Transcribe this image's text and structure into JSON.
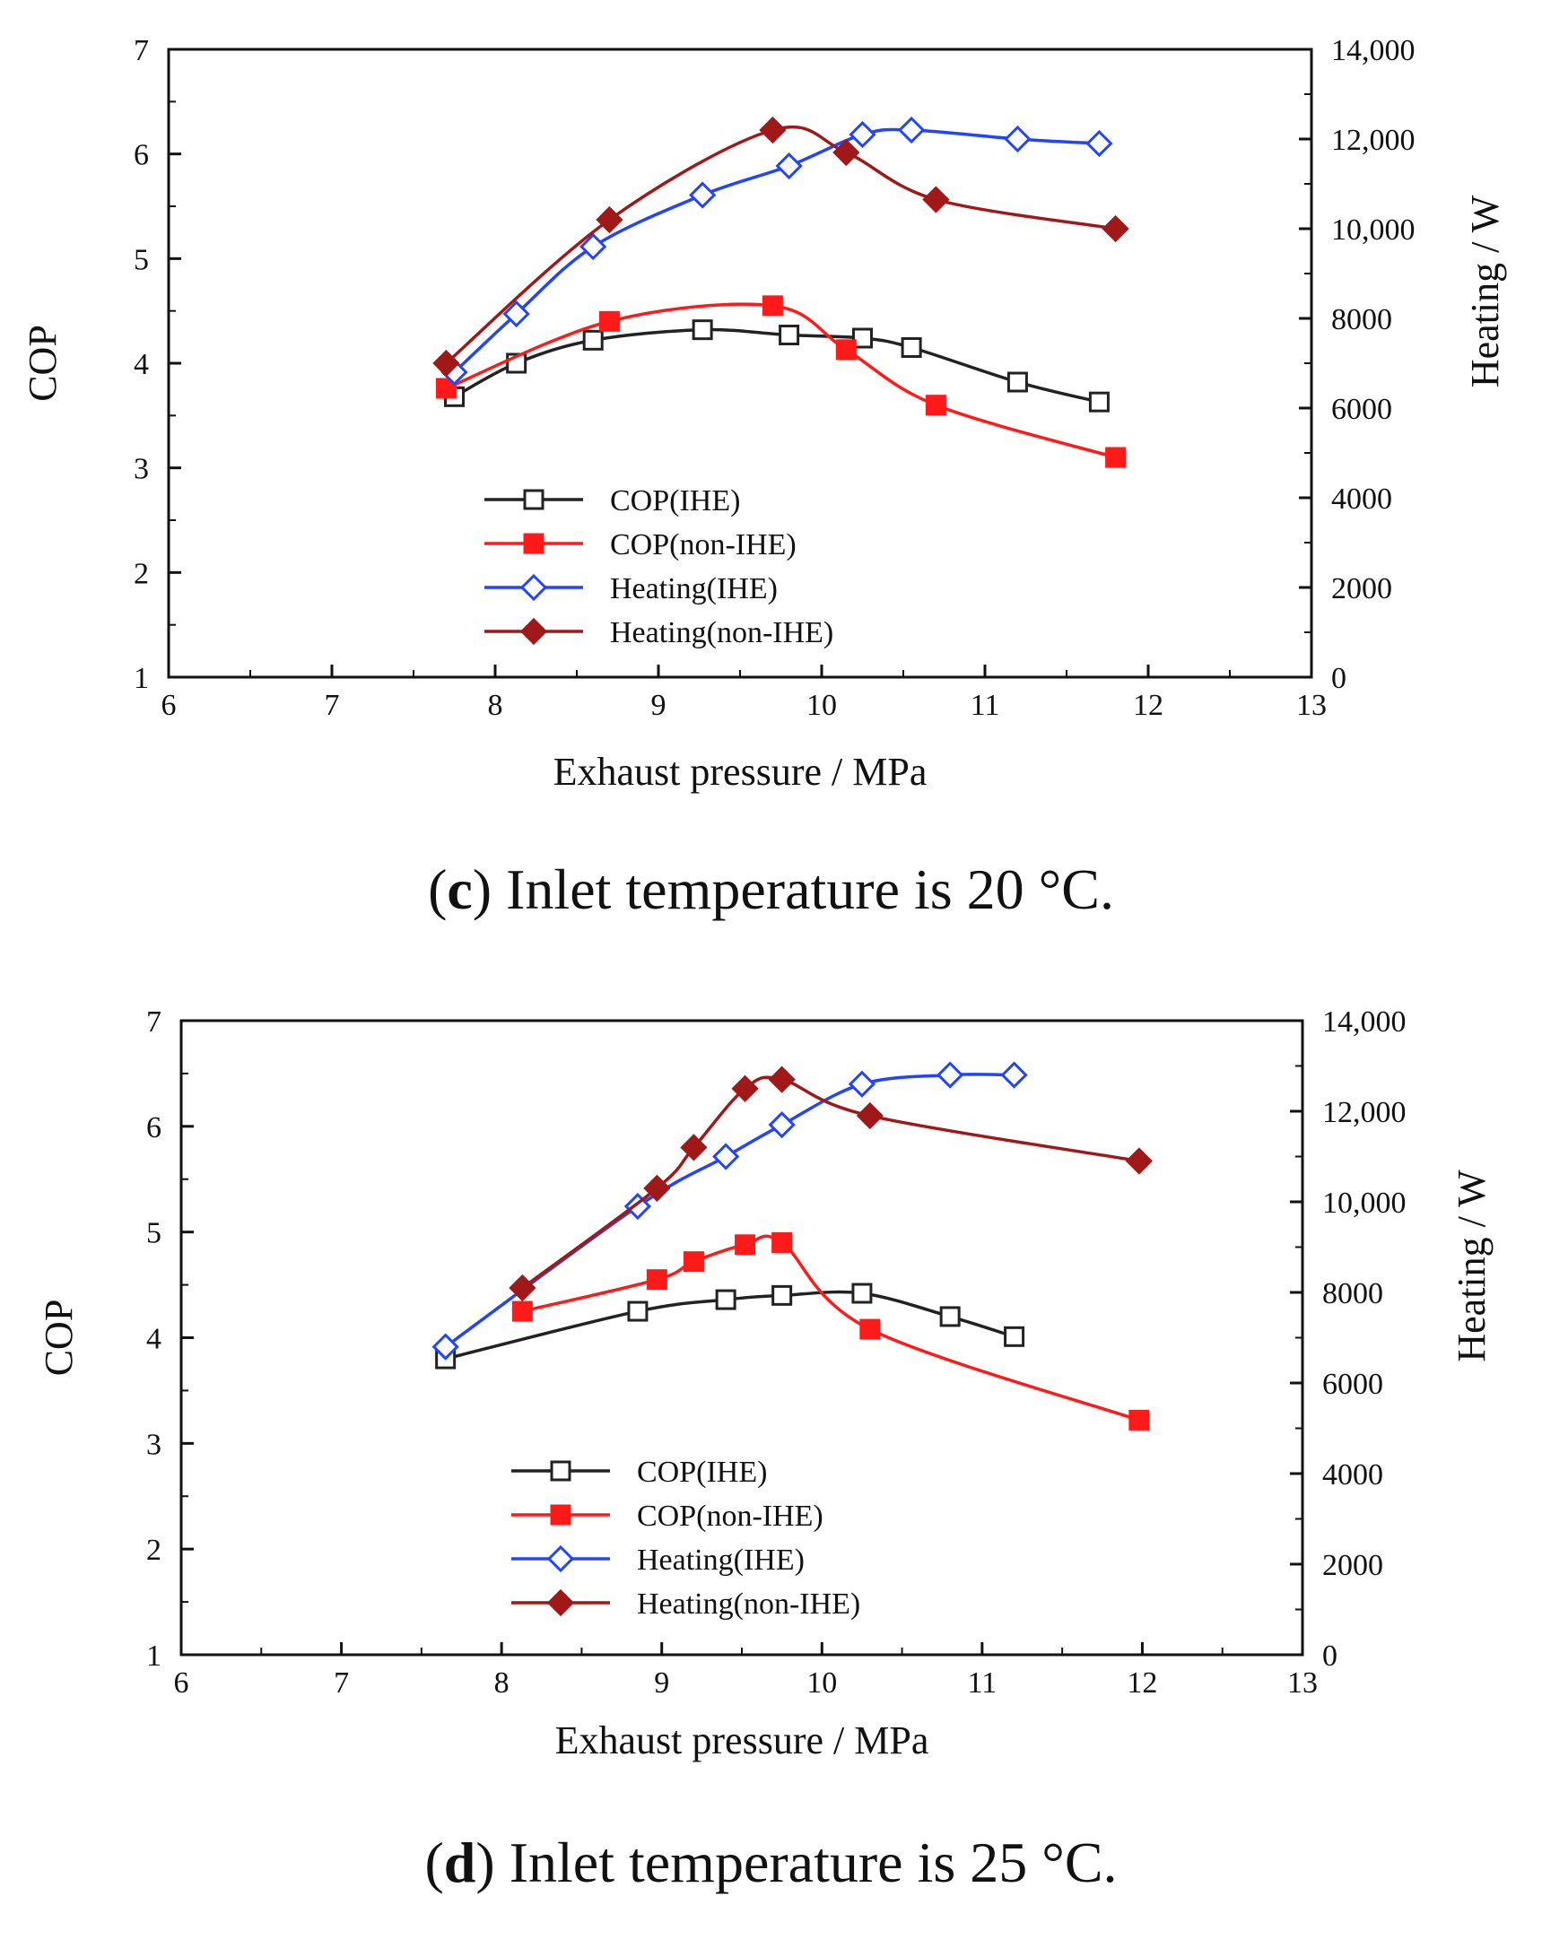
{
  "captions": [
    {
      "letter": "c",
      "text": ") Inlet temperature is 20 °C."
    },
    {
      "letter": "d",
      "text": ") Inlet temperature is 25 °C."
    }
  ],
  "chart_data": [
    {
      "type": "line",
      "xlabel": "Exhaust pressure / MPa",
      "ylabel": "COP",
      "y2label": "Heating / W",
      "xlim": [
        6,
        13
      ],
      "ylim": [
        1,
        7
      ],
      "y2lim": [
        0,
        14000
      ],
      "x_ticks": [
        "6",
        "7",
        "8",
        "9",
        "10",
        "11",
        "12",
        "13"
      ],
      "y_ticks": [
        "1",
        "2",
        "3",
        "4",
        "5",
        "6",
        "7"
      ],
      "y2_ticks": [
        "0",
        "2000",
        "4000",
        "6000",
        "8000",
        "10,000",
        "12,000",
        "14,000"
      ],
      "legend_position": "lower-center",
      "series": [
        {
          "name": "COP(IHE)",
          "axis": "left",
          "marker": "square-open",
          "color": "#222222",
          "x": [
            7.75,
            8.13,
            8.6,
            9.27,
            9.8,
            10.25,
            10.55,
            11.2,
            11.7
          ],
          "y": [
            3.68,
            4.0,
            4.22,
            4.32,
            4.27,
            4.24,
            4.15,
            3.82,
            3.63
          ]
        },
        {
          "name": "COP(non-IHE)",
          "axis": "left",
          "marker": "square-filled",
          "color": "#ff1a1a",
          "x": [
            7.7,
            8.7,
            9.7,
            10.15,
            10.7,
            11.8
          ],
          "y": [
            3.76,
            4.4,
            4.55,
            4.13,
            3.6,
            3.1
          ]
        },
        {
          "name": "Heating(IHE)",
          "axis": "right",
          "marker": "diamond-open",
          "color": "#2244ff",
          "x": [
            7.75,
            8.13,
            8.6,
            9.27,
            9.8,
            10.25,
            10.55,
            11.2,
            11.7
          ],
          "y": [
            6800,
            8100,
            9600,
            10750,
            11400,
            12100,
            12200,
            12000,
            11900
          ]
        },
        {
          "name": "Heating(non-IHE)",
          "axis": "right",
          "marker": "diamond-filled",
          "color": "#a01818",
          "x": [
            7.7,
            8.7,
            9.7,
            10.15,
            10.7,
            11.8
          ],
          "y": [
            7000,
            10200,
            12200,
            11700,
            10650,
            10000
          ]
        }
      ]
    },
    {
      "type": "line",
      "xlabel": "Exhaust pressure / MPa",
      "ylabel": "COP",
      "y2label": "Heating / W",
      "xlim": [
        6,
        13
      ],
      "ylim": [
        1,
        7
      ],
      "y2lim": [
        0,
        14000
      ],
      "x_ticks": [
        "6",
        "7",
        "8",
        "9",
        "10",
        "11",
        "12",
        "13"
      ],
      "y_ticks": [
        "1",
        "2",
        "3",
        "4",
        "5",
        "6",
        "7"
      ],
      "y2_ticks": [
        "0",
        "2000",
        "4000",
        "6000",
        "8000",
        "10,000",
        "12,000",
        "14,000"
      ],
      "legend_position": "lower-center",
      "series": [
        {
          "name": "COP(IHE)",
          "axis": "left",
          "marker": "square-open",
          "color": "#222222",
          "x": [
            7.65,
            8.85,
            9.4,
            9.75,
            10.25,
            10.8,
            11.2
          ],
          "y": [
            3.8,
            4.25,
            4.36,
            4.4,
            4.42,
            4.2,
            4.01
          ]
        },
        {
          "name": "COP(non-IHE)",
          "axis": "left",
          "marker": "square-filled",
          "color": "#ff1a1a",
          "x": [
            8.13,
            8.97,
            9.2,
            9.52,
            9.75,
            10.3,
            11.98
          ],
          "y": [
            4.25,
            4.55,
            4.72,
            4.88,
            4.9,
            4.08,
            3.22
          ]
        },
        {
          "name": "Heating(IHE)",
          "axis": "right",
          "marker": "diamond-open",
          "color": "#2244ff",
          "x": [
            7.65,
            8.85,
            9.4,
            9.75,
            10.25,
            10.8,
            11.2
          ],
          "y": [
            6800,
            9900,
            11000,
            11700,
            12600,
            12800,
            12800
          ]
        },
        {
          "name": "Heating(non-IHE)",
          "axis": "right",
          "marker": "diamond-filled",
          "color": "#a01818",
          "x": [
            8.13,
            8.97,
            9.2,
            9.52,
            9.75,
            10.3,
            11.98
          ],
          "y": [
            8100,
            10300,
            11200,
            12500,
            12700,
            11900,
            10900
          ]
        }
      ]
    }
  ]
}
